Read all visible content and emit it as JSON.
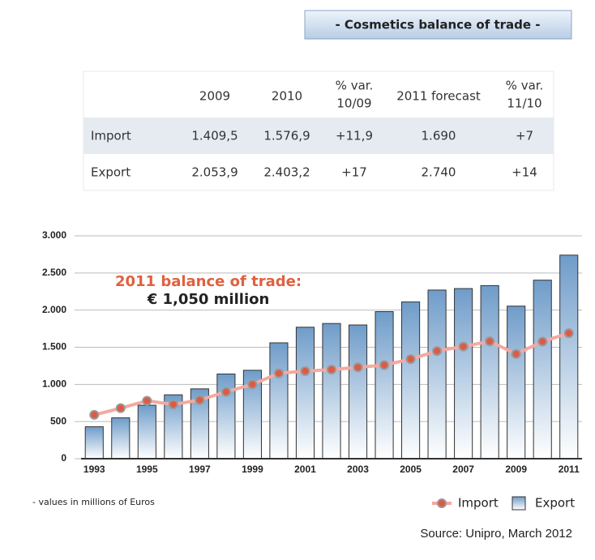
{
  "title": "- Cosmetics balance of trade -",
  "table": {
    "header": [
      [
        "2009"
      ],
      [
        "2010"
      ],
      [
        "% var.",
        "10/09"
      ],
      [
        "2011 forecast"
      ],
      [
        "% var.",
        "11/10"
      ]
    ],
    "rows": [
      [
        "Import",
        "1.409,5",
        "1.576,9",
        "+11,9",
        "1.690",
        "+7"
      ],
      [
        "Export",
        "2.053,9",
        "2.403,2",
        "+17",
        "2.740",
        "+14"
      ]
    ]
  },
  "chart_data": {
    "type": "bar_line",
    "categories": [
      "1993",
      null,
      "1995",
      null,
      "1997",
      null,
      "1999",
      null,
      "2001",
      null,
      "2003",
      null,
      "2005",
      null,
      "2007",
      null,
      "2009",
      null,
      "2011"
    ],
    "series": [
      {
        "name": "Import",
        "type": "line",
        "color": "#f4a9a0",
        "marker_color": "#de5a44",
        "values": [
          590,
          680,
          780,
          730,
          790,
          900,
          1000,
          1150,
          1180,
          1200,
          1230,
          1260,
          1340,
          1450,
          1510,
          1580,
          1409.5,
          1576.9,
          1690
        ]
      },
      {
        "name": "Export",
        "type": "bar",
        "color": "#7ba5d1",
        "values": [
          430,
          550,
          720,
          860,
          940,
          1140,
          1190,
          1560,
          1770,
          1820,
          1800,
          1980,
          2110,
          2270,
          2290,
          2330,
          2053.9,
          2403.2,
          2740
        ]
      }
    ],
    "ylim": [
      0,
      3000
    ],
    "yticks": [
      0,
      500,
      {
        "value": 1000,
        "label": "1.000"
      },
      {
        "value": 1500,
        "label": "1.500"
      },
      {
        "value": 2000,
        "label": "2.000"
      },
      {
        "value": 2500,
        "label": "2.500"
      },
      {
        "value": 3000,
        "label": "3.000"
      }
    ],
    "grid": true,
    "annotations": [
      "2011 balance of trade:",
      "€ 1,050 million"
    ],
    "note": "- values in millions of Euros",
    "source": "Source: Unipro, March 2012"
  }
}
